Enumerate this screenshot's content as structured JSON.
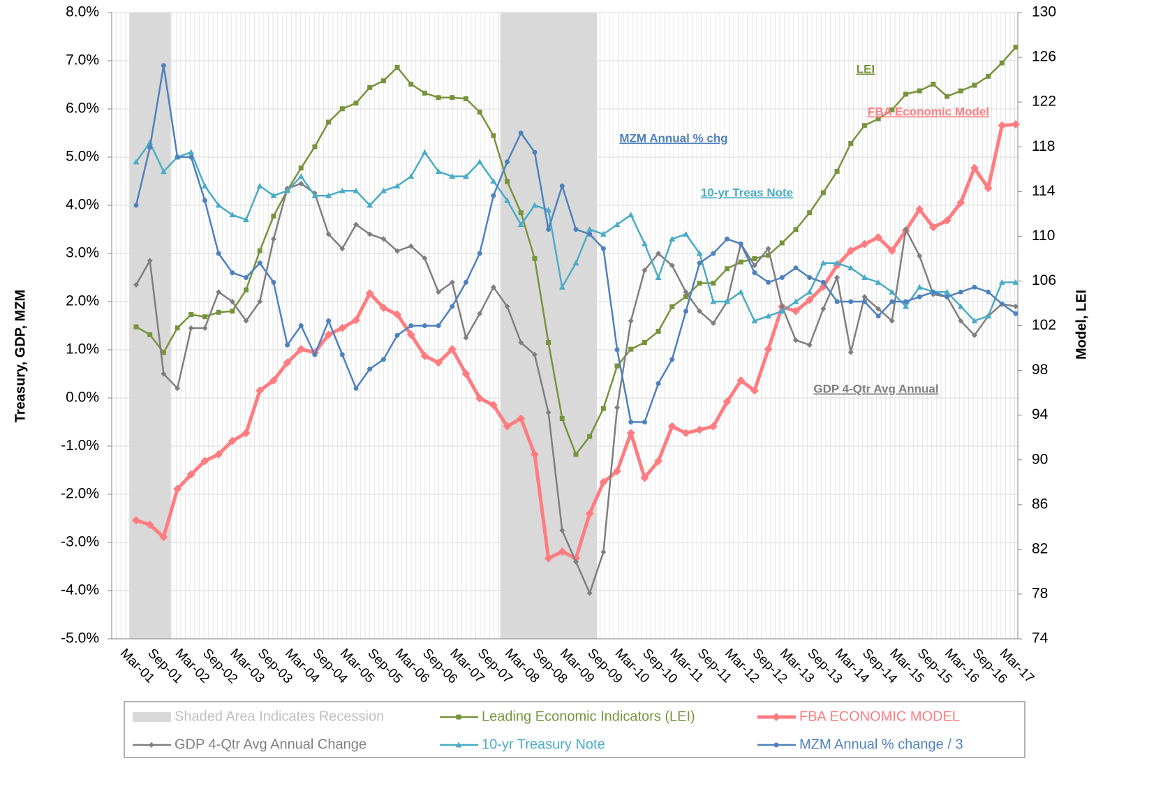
{
  "chart_data": {
    "type": "line",
    "y_axis_title": "Treasury, GDP, MZM",
    "y2_axis_title": "Model, LEI",
    "ylim": [
      -5,
      8
    ],
    "yticks": [
      {
        "value": -5,
        "label": "-5.0%"
      },
      {
        "value": -4,
        "label": "-4.0%"
      },
      {
        "value": -3,
        "label": "-3.0%"
      },
      {
        "value": -2,
        "label": "-2.0%"
      },
      {
        "value": -1,
        "label": "-1.0%"
      },
      {
        "value": 0,
        "label": "0.0%"
      },
      {
        "value": 1,
        "label": "1.0%"
      },
      {
        "value": 2,
        "label": "2.0%"
      },
      {
        "value": 3,
        "label": "3.0%"
      },
      {
        "value": 4,
        "label": "4.0%"
      },
      {
        "value": 5,
        "label": "5.0%"
      },
      {
        "value": 6,
        "label": "6.0%"
      },
      {
        "value": 7,
        "label": "7.0%"
      },
      {
        "value": 8,
        "label": "8.0%"
      }
    ],
    "y2lim": [
      74,
      130
    ],
    "y2ticks": [
      74,
      78,
      82,
      86,
      90,
      94,
      98,
      102,
      106,
      110,
      114,
      118,
      122,
      126,
      130
    ],
    "grid": true,
    "legend_position": "bottom",
    "categories": [
      "Mar-01",
      null,
      "Sep-01",
      null,
      "Mar-02",
      null,
      "Sep-02",
      null,
      "Mar-03",
      null,
      "Sep-03",
      null,
      "Mar-04",
      null,
      "Sep-04",
      null,
      "Mar-05",
      null,
      "Sep-05",
      null,
      "Mar-06",
      null,
      "Sep-06",
      null,
      "Mar-07",
      null,
      "Sep-07",
      null,
      "Mar-08",
      null,
      "Sep-08",
      null,
      "Mar-09",
      null,
      "Sep-09",
      null,
      "Mar-10",
      null,
      "Sep-10",
      null,
      "Mar-11",
      null,
      "Sep-11",
      null,
      "Mar-12",
      null,
      "Sep-12",
      null,
      "Mar-13",
      null,
      "Sep-13",
      null,
      "Mar-14",
      null,
      "Sep-14",
      null,
      "Mar-15",
      null,
      "Sep-15",
      null,
      "Mar-16",
      null,
      "Sep-16",
      null,
      "Mar-17"
    ],
    "series": [
      {
        "name": "Shaded Area Indicates Recession",
        "type": "bar",
        "color": "#d9d9d9",
        "values": [
          8,
          8,
          8,
          null,
          null,
          null,
          null,
          null,
          null,
          null,
          null,
          null,
          null,
          null,
          null,
          null,
          null,
          null,
          null,
          null,
          null,
          null,
          null,
          null,
          null,
          null,
          null,
          8,
          8,
          8,
          8,
          8,
          8,
          8,
          null,
          null,
          null,
          null,
          null,
          null,
          null,
          null,
          null,
          null,
          null,
          null,
          null,
          null,
          null,
          null,
          null,
          null,
          null,
          null,
          null,
          null,
          null,
          null,
          null,
          null,
          null,
          null,
          null,
          null,
          null
        ]
      },
      {
        "name": "Leading Economic Indicators (LEI)",
        "color": "#77933c",
        "marker": "square",
        "axis": "y2",
        "values": [
          101.9,
          101.2,
          99.6,
          101.8,
          103.0,
          102.8,
          103.2,
          103.3,
          105.2,
          108.7,
          111.8,
          114.1,
          116.1,
          118.0,
          120.2,
          121.4,
          121.9,
          123.3,
          123.9,
          125.1,
          123.6,
          122.8,
          122.4,
          122.4,
          122.3,
          121.1,
          119.0,
          114.9,
          112.1,
          108.0,
          100.5,
          93.7,
          90.5,
          92.1,
          94.6,
          98.4,
          99.9,
          100.5,
          101.5,
          103.7,
          104.6,
          105.8,
          105.8,
          107.1,
          107.7,
          108.0,
          108.3,
          109.4,
          110.6,
          112.1,
          113.9,
          115.8,
          118.3,
          119.9,
          120.5,
          121.3,
          122.7,
          123.0,
          123.6,
          122.5,
          123.0,
          123.5,
          124.3,
          125.5,
          126.9
        ]
      },
      {
        "name": "FBA ECONOMIC MODEL",
        "color": "#ff7c80",
        "marker": "diamond",
        "axis": "y2",
        "values": [
          84.6,
          84.2,
          83.1,
          87.4,
          88.7,
          89.9,
          90.5,
          91.7,
          92.4,
          96.2,
          97.1,
          98.7,
          99.9,
          99.6,
          101.2,
          101.8,
          102.5,
          104.9,
          103.6,
          103.0,
          101.2,
          99.3,
          98.7,
          99.9,
          97.7,
          95.5,
          94.9,
          93.0,
          93.7,
          90.5,
          81.2,
          81.8,
          81.2,
          85.2,
          88.0,
          89.0,
          92.4,
          88.4,
          89.9,
          93.0,
          92.4,
          92.7,
          93.0,
          95.2,
          97.1,
          96.2,
          99.9,
          103.7,
          103.3,
          104.3,
          105.5,
          107.4,
          108.7,
          109.3,
          109.9,
          108.7,
          110.5,
          112.4,
          110.8,
          111.4,
          113.0,
          116.1,
          114.3,
          119.9,
          120.0
        ]
      },
      {
        "name": "GDP 4-Qtr Avg Annual Change",
        "color": "#7f7f7f",
        "marker": "smalldiamond",
        "values": [
          2.35,
          2.85,
          0.5,
          0.2,
          1.45,
          1.45,
          2.2,
          2.0,
          1.6,
          2.0,
          3.3,
          4.35,
          4.45,
          4.25,
          3.4,
          3.1,
          3.6,
          3.4,
          3.3,
          3.05,
          3.15,
          2.9,
          2.2,
          2.4,
          1.25,
          1.75,
          2.3,
          1.9,
          1.15,
          0.9,
          -0.3,
          -2.75,
          -3.4,
          -4.05,
          -3.2,
          -0.2,
          1.6,
          2.65,
          3.0,
          2.75,
          2.2,
          1.8,
          1.55,
          2.0,
          3.2,
          2.75,
          3.1,
          1.9,
          1.2,
          1.1,
          1.85,
          2.5,
          0.95,
          2.1,
          1.85,
          1.6,
          3.5,
          2.95,
          2.15,
          2.1,
          1.6,
          1.3,
          1.7,
          1.95,
          1.9
        ]
      },
      {
        "name": "10-yr Treasury Note",
        "color": "#4bacc6",
        "marker": "triangle",
        "values": [
          4.9,
          5.3,
          4.7,
          5.0,
          5.1,
          4.4,
          4.0,
          3.8,
          3.7,
          4.4,
          4.2,
          4.3,
          4.6,
          4.2,
          4.2,
          4.3,
          4.3,
          4.0,
          4.3,
          4.4,
          4.6,
          5.1,
          4.7,
          4.6,
          4.6,
          4.9,
          4.5,
          4.1,
          3.6,
          4.0,
          3.9,
          2.3,
          2.8,
          3.5,
          3.4,
          3.6,
          3.8,
          3.2,
          2.5,
          3.3,
          3.4,
          3.0,
          2.0,
          2.0,
          2.2,
          1.6,
          1.7,
          1.8,
          2.0,
          2.2,
          2.8,
          2.8,
          2.7,
          2.5,
          2.4,
          2.2,
          1.9,
          2.3,
          2.2,
          2.2,
          1.9,
          1.6,
          1.7,
          2.4,
          2.4
        ]
      },
      {
        "name": "MZM Annual % change / 3",
        "color": "#4f81bd",
        "marker": "circle",
        "values": [
          4.0,
          5.2,
          6.9,
          5.0,
          5.0,
          4.1,
          3.0,
          2.6,
          2.5,
          2.8,
          2.4,
          1.1,
          1.5,
          0.9,
          1.6,
          0.9,
          0.2,
          0.6,
          0.8,
          1.3,
          1.5,
          1.5,
          1.5,
          1.9,
          2.4,
          3.0,
          4.2,
          4.9,
          5.5,
          5.1,
          3.5,
          4.4,
          3.5,
          3.4,
          3.1,
          1.0,
          -0.5,
          -0.5,
          0.3,
          0.8,
          1.8,
          2.8,
          3.0,
          3.3,
          3.2,
          2.6,
          2.4,
          2.5,
          2.7,
          2.5,
          2.4,
          2.0,
          2.0,
          2.0,
          1.7,
          2.0,
          2.0,
          2.1,
          2.2,
          2.1,
          2.2,
          2.3,
          2.2,
          1.95,
          1.75
        ]
      }
    ],
    "annotations": [
      {
        "text": "LEI",
        "color": "#77933c"
      },
      {
        "text": "FBA Economic Model",
        "color": "#ff7c80"
      },
      {
        "text": "MZM Annual % chg",
        "color": "#4f81bd"
      },
      {
        "text": "10-yr Treas Note",
        "color": "#4bacc6"
      },
      {
        "text": "GDP 4-Qtr Avg Annual",
        "color": "#7f7f7f"
      }
    ]
  }
}
